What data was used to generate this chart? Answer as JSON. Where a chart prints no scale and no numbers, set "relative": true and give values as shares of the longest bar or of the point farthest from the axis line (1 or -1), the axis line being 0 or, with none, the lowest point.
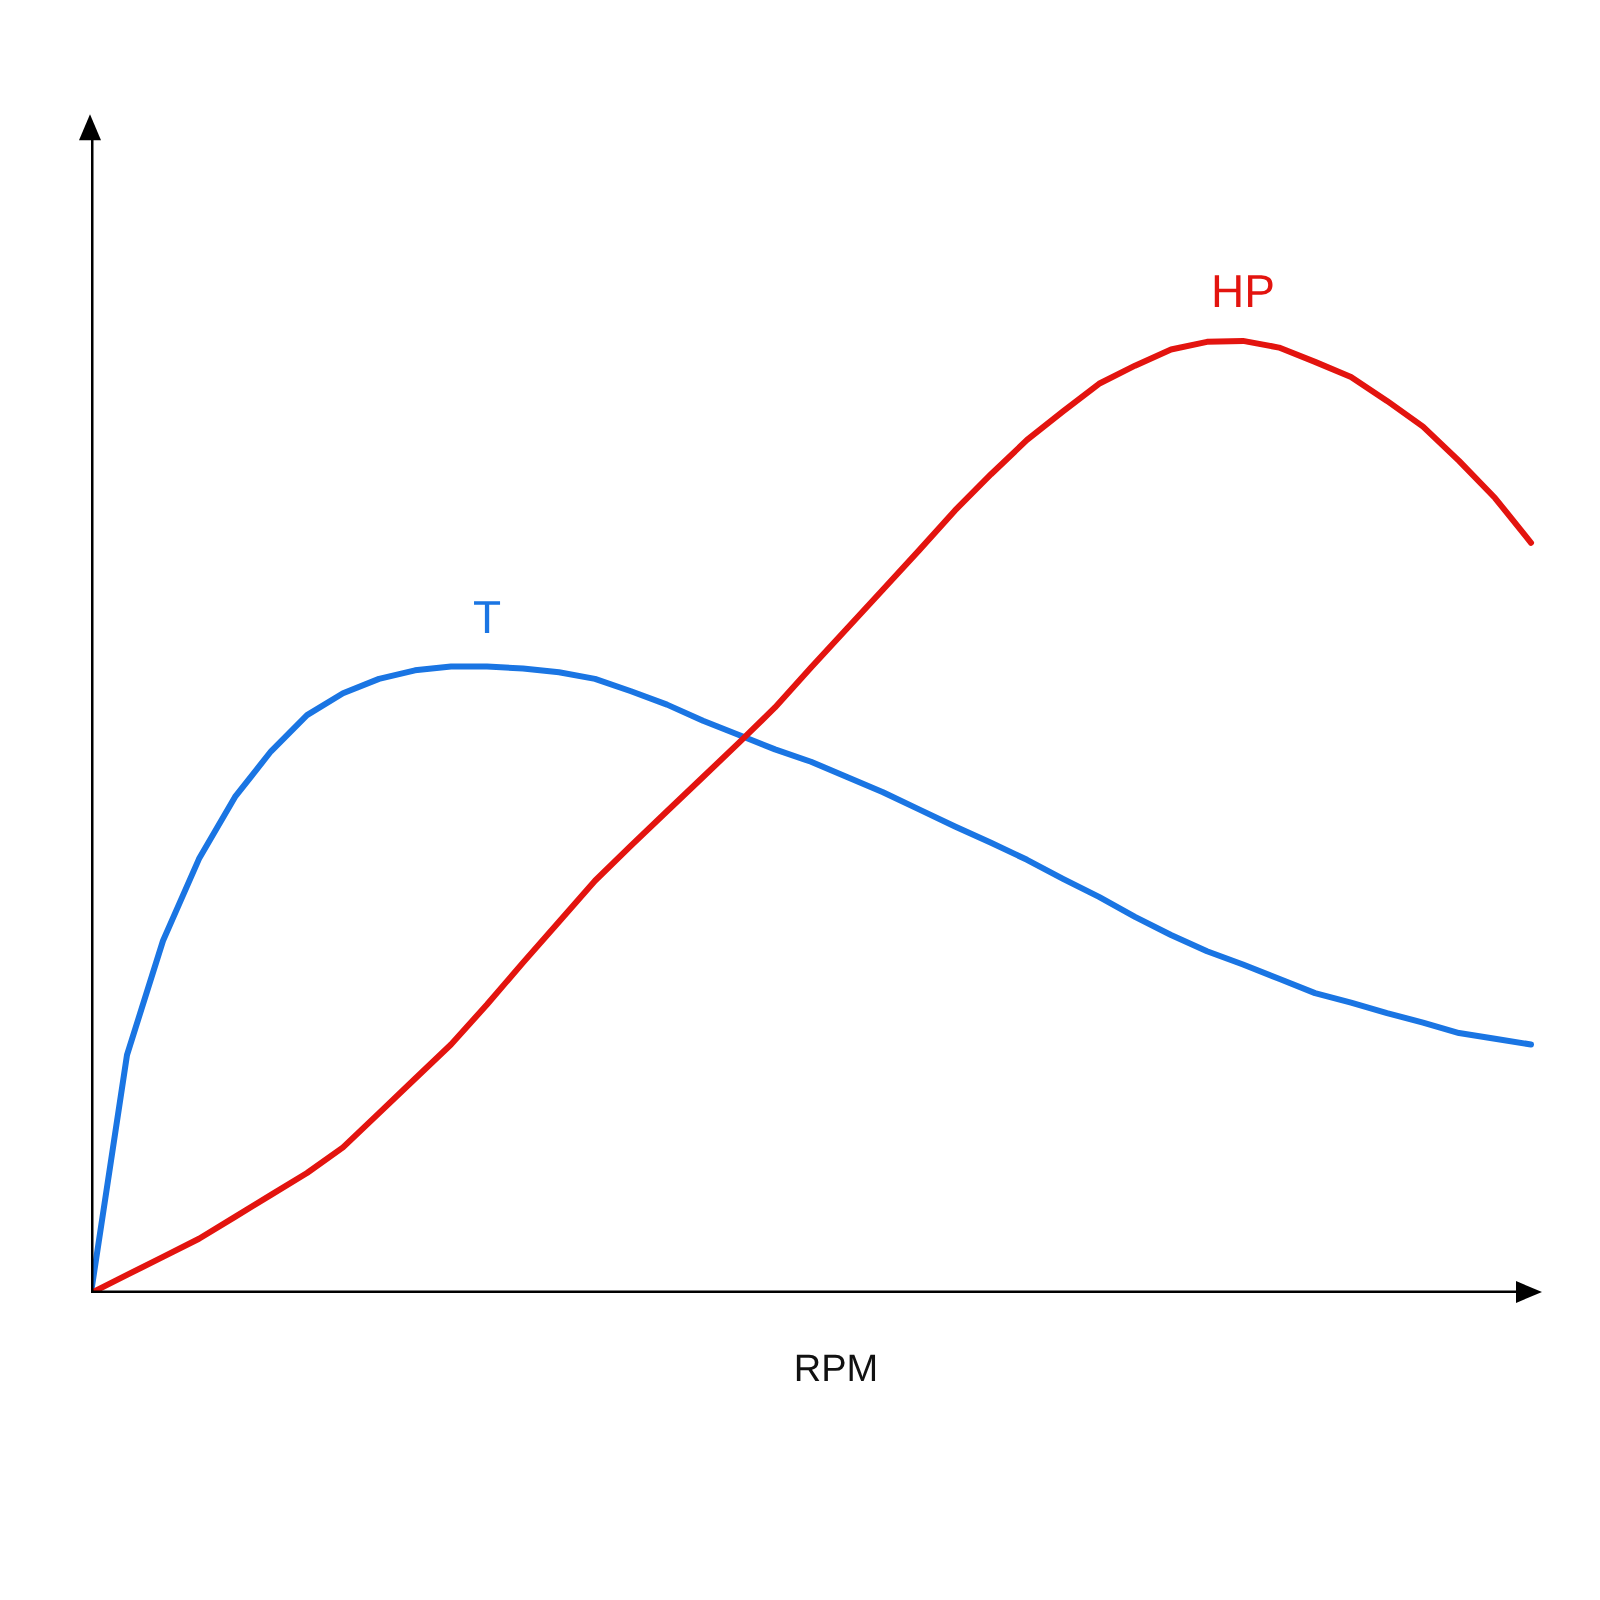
{
  "chart_data": {
    "type": "line",
    "relative": true,
    "xlabel": "RPM",
    "grid": false,
    "tick_labels": false,
    "line_style": "solid",
    "categories": [
      null,
      null,
      null,
      null,
      null,
      null,
      null,
      null,
      null,
      null,
      null,
      null,
      null,
      null,
      null,
      null,
      null,
      null,
      null,
      null,
      null,
      null,
      null,
      null,
      null,
      null,
      null,
      null,
      null,
      null,
      null,
      null,
      null,
      null,
      null,
      null,
      null,
      null,
      null,
      null,
      null
    ],
    "series": [
      {
        "name": "T",
        "color": "#1a75e3",
        "values": [
          0,
          0.25,
          0.37,
          0.456,
          0.521,
          0.569,
          0.607,
          0.63,
          0.645,
          0.654,
          0.658,
          0.658,
          0.656,
          0.652,
          0.645,
          0.632,
          0.618,
          0.601,
          0.586,
          0.571,
          0.558,
          0.542,
          0.526,
          0.508,
          0.49,
          0.473,
          0.455,
          0.435,
          0.416,
          0.395,
          0.376,
          0.359,
          0.345,
          0.33,
          0.315,
          0.305,
          0.294,
          0.284,
          0.273,
          0.267,
          0.261
        ]
      },
      {
        "name": "HP",
        "color": "#e3140f",
        "values": [
          0,
          0.019,
          0.038,
          0.057,
          0.08,
          0.103,
          0.126,
          0.153,
          0.189,
          0.225,
          0.261,
          0.303,
          0.347,
          0.39,
          0.433,
          0.47,
          0.506,
          0.542,
          0.578,
          0.615,
          0.657,
          0.698,
          0.739,
          0.78,
          0.822,
          0.86,
          0.896,
          0.926,
          0.955,
          0.974,
          0.991,
          0.999,
          1.0,
          0.993,
          0.978,
          0.962,
          0.937,
          0.91,
          0.874,
          0.835,
          0.788
        ]
      }
    ]
  }
}
